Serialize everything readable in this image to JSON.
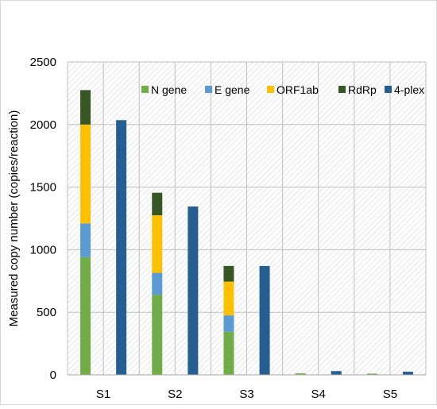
{
  "chart_data": {
    "type": "bar",
    "title": "",
    "xlabel": "",
    "ylabel": "Measured copy number (copies/reaction)",
    "ylim": [
      0,
      2500
    ],
    "yticks": [
      0,
      500,
      1000,
      1500,
      2000,
      2500
    ],
    "grid": true,
    "legend_position": "top-right",
    "categories": [
      "S1",
      "S2",
      "S3",
      "S4",
      "S5"
    ],
    "stacked_series": [
      {
        "name": "N gene",
        "color": "#70ad47",
        "values": [
          940,
          640,
          345,
          12,
          10
        ]
      },
      {
        "name": "E gene",
        "color": "#5b9bd5",
        "values": [
          270,
          175,
          130,
          0,
          0
        ]
      },
      {
        "name": "ORF1ab",
        "color": "#ffc000",
        "values": [
          790,
          460,
          270,
          0,
          0
        ]
      },
      {
        "name": "RdRp",
        "color": "#375623",
        "values": [
          275,
          180,
          125,
          0,
          0
        ]
      }
    ],
    "separate_series": [
      {
        "name": "4-plex",
        "color": "#255e91",
        "values": [
          2035,
          1345,
          870,
          30,
          25
        ]
      }
    ]
  }
}
